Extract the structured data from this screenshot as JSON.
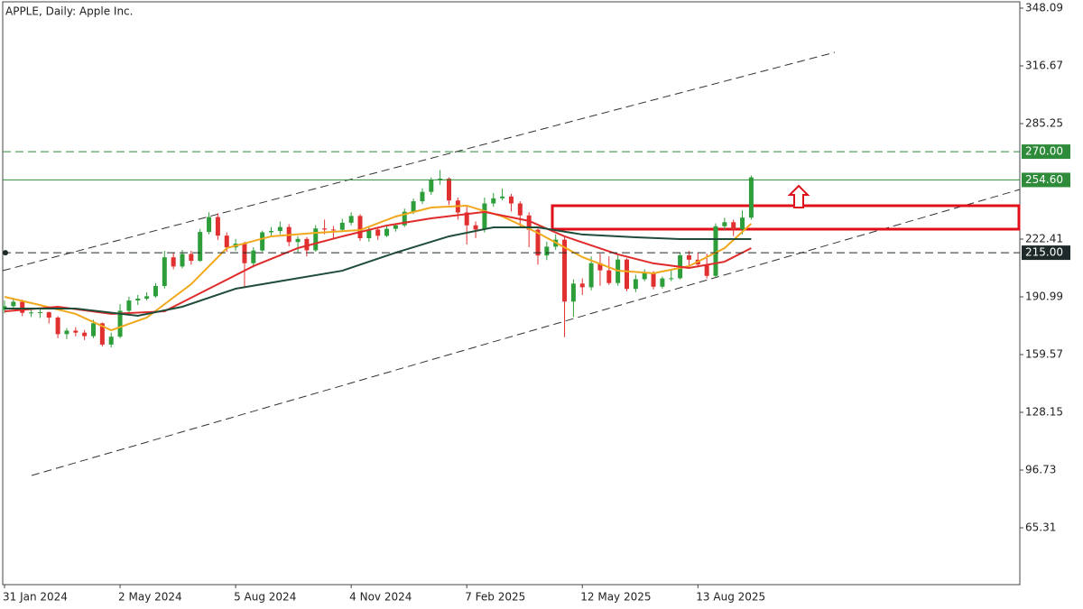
{
  "chart_data": {
    "type": "candlestick",
    "title": "APPLE, Daily:  Apple Inc.",
    "categories": [
      "31 Jan 2024",
      null,
      null,
      null,
      null,
      null,
      null,
      null,
      null,
      null,
      null,
      null,
      null,
      "2 May 2024",
      null,
      null,
      null,
      null,
      null,
      null,
      null,
      null,
      null,
      null,
      null,
      null,
      "5 Aug 2024",
      null,
      null,
      null,
      null,
      null,
      null,
      null,
      null,
      null,
      null,
      null,
      null,
      "4 Nov 2024",
      null,
      null,
      null,
      null,
      null,
      null,
      null,
      null,
      null,
      null,
      null,
      null,
      "7 Feb 2025",
      null,
      null,
      null,
      null,
      null,
      null,
      null,
      null,
      null,
      null,
      null,
      null,
      "12 May 2025",
      null,
      null,
      null,
      null,
      null,
      null,
      null,
      null,
      null,
      null,
      null,
      null,
      "13 Aug 2025",
      null,
      null,
      null,
      null,
      null,
      null
    ],
    "open": [
      184.0,
      185.9,
      188.3,
      182.3,
      182.5,
      182.6,
      179.7,
      170.7,
      172.6,
      171.5,
      169.6,
      176.6,
      165.0,
      169.3,
      183.4,
      189.0,
      190.0,
      191.3,
      196.9,
      212.5,
      207.5,
      214.3,
      210.6,
      226.3,
      234.4,
      224.3,
      217.9,
      219.9,
      209.3,
      216.2,
      226.1,
      226.8,
      229.0,
      220.8,
      222.5,
      216.3,
      228.2,
      227.6,
      227.5,
      231.3,
      235.0,
      222.9,
      227.6,
      224.2,
      228.0,
      229.9,
      237.3,
      243.0,
      248.1,
      254.5,
      255.3,
      243.4,
      236.9,
      229.9,
      227.6,
      241.8,
      244.6,
      245.6,
      241.8,
      235.3,
      227.5,
      213.5,
      218.3,
      222.1,
      188.4,
      198.2,
      196.2,
      209.3,
      205.4,
      198.5,
      211.3,
      195.3,
      200.6,
      203.9,
      196.5,
      201.0,
      201.1,
      213.6,
      211.2,
      208.6,
      202.4,
      229.4,
      231.6,
      227.8,
      234.1
    ],
    "high": [
      189.0,
      190.5,
      189.5,
      185.0,
      184.5,
      183.0,
      180.5,
      174.0,
      174.5,
      173.0,
      178.5,
      177.0,
      171.5,
      187.0,
      191.0,
      192.0,
      193.5,
      198.5,
      216.0,
      215.0,
      216.5,
      216.0,
      228.0,
      237.0,
      236.5,
      226.0,
      222.5,
      221.0,
      218.0,
      227.0,
      229.0,
      232.0,
      230.5,
      224.0,
      223.5,
      230.0,
      233.0,
      229.5,
      233.5,
      237.0,
      236.0,
      229.0,
      228.5,
      229.5,
      231.0,
      239.0,
      244.5,
      250.0,
      256.0,
      260.0,
      256.0,
      245.0,
      240.0,
      232.0,
      245.0,
      247.5,
      250.0,
      247.0,
      243.0,
      237.0,
      229.0,
      221.0,
      225.0,
      224.0,
      200.5,
      201.0,
      213.0,
      214.5,
      213.0,
      213.5,
      212.0,
      203.0,
      206.0,
      205.0,
      202.0,
      205.5,
      215.0,
      216.0,
      215.0,
      214.5,
      231.0,
      234.0,
      233.0,
      238.0,
      257.0
    ],
    "low": [
      182.0,
      184.5,
      180.5,
      180.0,
      179.5,
      176.5,
      168.5,
      168.0,
      169.5,
      167.5,
      168.5,
      164.0,
      163.5,
      168.5,
      182.0,
      186.5,
      189.0,
      190.5,
      195.5,
      206.0,
      206.5,
      208.5,
      210.0,
      225.0,
      222.0,
      215.5,
      216.0,
      196.0,
      207.0,
      215.5,
      223.5,
      225.0,
      218.5,
      215.0,
      213.0,
      215.5,
      225.0,
      223.0,
      226.5,
      230.0,
      221.5,
      221.0,
      222.0,
      223.5,
      226.5,
      229.0,
      236.0,
      241.5,
      246.5,
      252.0,
      241.0,
      233.0,
      219.5,
      223.0,
      226.0,
      240.0,
      243.5,
      237.5,
      229.0,
      218.0,
      208.5,
      211.0,
      216.5,
      169.0,
      180.0,
      192.0,
      194.5,
      197.0,
      197.5,
      197.0,
      194.0,
      193.5,
      199.5,
      195.0,
      195.5,
      199.5,
      200.5,
      208.0,
      207.0,
      201.0,
      201.5,
      227.5,
      224.0,
      225.0,
      233.0
    ],
    "close": [
      185.9,
      188.3,
      182.3,
      182.5,
      182.6,
      179.7,
      170.7,
      172.6,
      171.5,
      169.6,
      176.6,
      165.0,
      169.3,
      183.4,
      189.0,
      190.0,
      191.3,
      196.9,
      212.5,
      207.5,
      214.3,
      210.6,
      226.3,
      234.4,
      224.3,
      217.9,
      219.9,
      209.3,
      216.2,
      226.1,
      226.8,
      229.0,
      220.8,
      222.5,
      216.3,
      228.2,
      227.6,
      227.5,
      231.3,
      235.0,
      222.9,
      227.6,
      224.2,
      228.0,
      229.9,
      237.3,
      243.0,
      248.1,
      254.5,
      255.3,
      243.4,
      236.9,
      229.9,
      227.6,
      241.8,
      244.6,
      245.6,
      241.8,
      235.3,
      227.5,
      213.5,
      218.3,
      222.1,
      188.4,
      198.2,
      196.2,
      209.3,
      205.4,
      198.5,
      211.3,
      195.3,
      200.6,
      203.9,
      196.5,
      201.0,
      201.1,
      213.6,
      211.2,
      208.6,
      202.4,
      229.4,
      231.6,
      227.8,
      234.1,
      256.0
    ],
    "up_color": "#2e9e3a",
    "down_color": "#e0302f",
    "lines": [
      {
        "color": "#f0a81c",
        "x": [
          0,
          4,
          8,
          12,
          16,
          21,
          25,
          30,
          35,
          40,
          44,
          48,
          52,
          56,
          60,
          65,
          69,
          73,
          77,
          81,
          84
        ],
        "values": [
          191.0,
          186.5,
          181.7,
          172.8,
          179.7,
          197.9,
          217.5,
          223.9,
          225.8,
          227.3,
          234.7,
          239.6,
          240.6,
          234.7,
          225.8,
          212.6,
          205.2,
          203.8,
          207.7,
          217.5,
          230.8
        ]
      },
      {
        "color": "#e02b2b",
        "x": [
          0,
          6,
          12,
          18,
          23,
          28,
          33,
          38,
          43,
          48,
          54,
          59,
          63,
          69,
          73,
          77,
          81,
          84
        ],
        "values": [
          183.1,
          185.6,
          181.7,
          183.1,
          195.4,
          207.7,
          217.5,
          223.9,
          229.8,
          233.7,
          237.2,
          232.3,
          223.9,
          214.1,
          209.2,
          206.7,
          210.1,
          217.5
        ]
      },
      {
        "color": "#1f4d3a",
        "x": [
          0,
          8,
          15,
          20,
          26,
          32,
          38,
          44,
          50,
          55,
          60,
          65,
          71,
          76,
          84
        ],
        "values": [
          184.6,
          184.6,
          180.7,
          185.6,
          195.4,
          200.3,
          205.2,
          215.0,
          223.9,
          228.8,
          228.8,
          224.9,
          223.4,
          222.4,
          222.4
        ]
      }
    ],
    "levels": [
      {
        "value": 270,
        "label": "270.00",
        "style": "dashed",
        "color": "#2e8b3a"
      },
      {
        "value": 254.6,
        "label": "254.60",
        "style": "solid",
        "color": "#2e8b3a"
      },
      {
        "value": 215,
        "label": "215.00",
        "style": "dashed",
        "color": "#1e2a2a"
      }
    ],
    "ylim": [
      34.38,
      351.53
    ],
    "yticks": [
      348.09,
      316.67,
      285.25,
      222.41,
      190.99,
      159.57,
      128.15,
      96.73,
      65.31
    ]
  }
}
